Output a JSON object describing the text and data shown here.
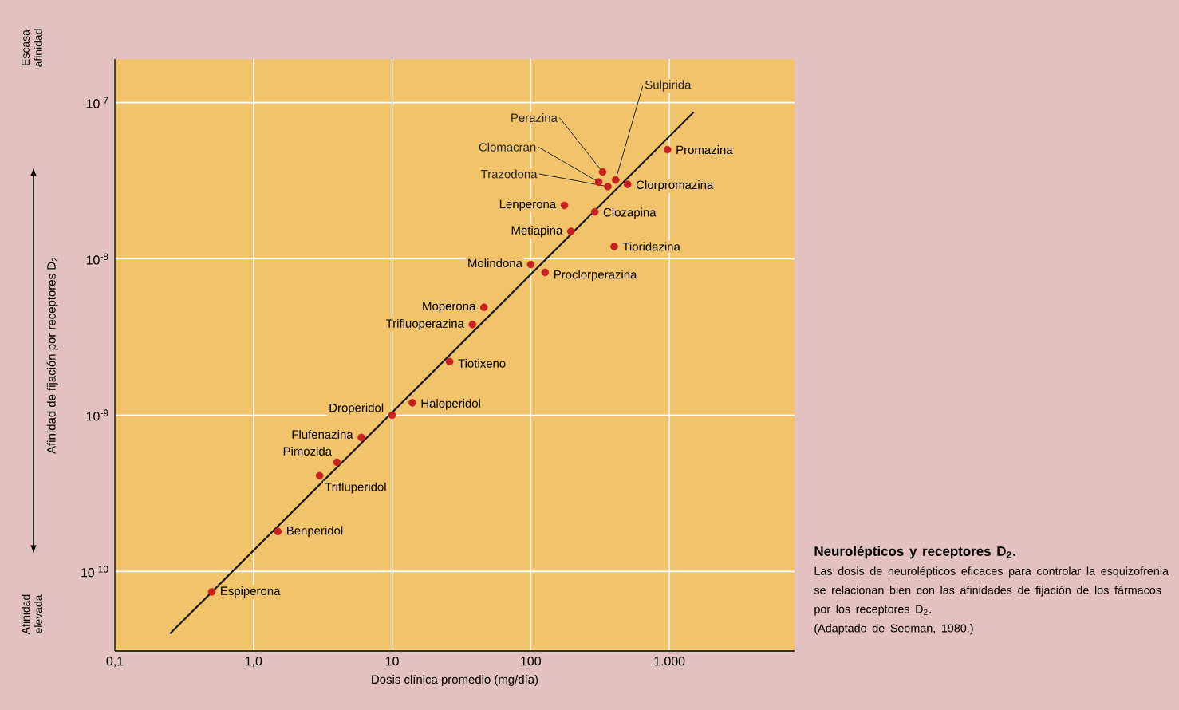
{
  "chart_data": {
    "type": "scatter",
    "title": "Neurolépticos y receptores D$_{2}$.",
    "xlabel": "Dosis clínica promedio (mg/día)",
    "ylabel": "Afinidad de fijación por receptores D$_{2}$",
    "log": "xy",
    "grid": true,
    "marker": "circle",
    "xlim": [
      0.1,
      8000
    ],
    "ylim": [
      3.1e-11,
      1.9e-07
    ],
    "xticks": [
      {
        "value": 0.1,
        "label": "0,1"
      },
      {
        "value": 1,
        "label": "1,0"
      },
      10,
      100,
      {
        "value": 1000,
        "label": "1.000"
      }
    ],
    "yticks": [
      {
        "value": 1e-10,
        "label": "10$^{-10}$"
      },
      {
        "value": 1e-09,
        "label": "10$^{-9}$"
      },
      {
        "value": 1e-08,
        "label": "10$^{-8}$"
      },
      {
        "value": 1e-07,
        "label": "10$^{-7}$"
      }
    ],
    "series": [
      {
        "color": "#c8201e",
        "x": [
          0.5,
          1.5,
          3.0,
          4.0,
          6.0,
          10,
          14,
          26,
          38,
          46,
          100,
          127,
          195,
          175,
          290,
          400,
          500,
          330,
          310,
          360,
          410,
          970
        ],
        "values": [
          7.4e-11,
          1.8e-10,
          4.1e-10,
          5e-10,
          7.2e-10,
          1e-09,
          1.2e-09,
          2.2e-09,
          3.8e-09,
          4.9e-09,
          9.2e-09,
          8.2e-09,
          1.5e-08,
          2.2e-08,
          2e-08,
          1.2e-08,
          3e-08,
          3.6e-08,
          3.1e-08,
          2.9e-08,
          3.2e-08,
          5e-08
        ]
      },
      {
        "type": "line",
        "marker": "none",
        "color": "#1a1a1a",
        "x": [
          0.25,
          1500
        ],
        "values": [
          4e-11,
          8.7e-08
        ]
      }
    ],
    "annotations": [
      {
        "text": "Espiperona",
        "x": 0.5,
        "y": 7.4e-11
      },
      {
        "text": "Benperidol",
        "x": 1.5,
        "y": 1.8e-10
      },
      {
        "text": "Trifluperidol",
        "x": 3.0,
        "y": 4.1e-10
      },
      {
        "text": "Pimozida",
        "x": 4.0,
        "y": 5e-10
      },
      {
        "text": "Flufenazina",
        "x": 6.0,
        "y": 7.2e-10
      },
      {
        "text": "Droperidol",
        "x": 10,
        "y": 1e-09
      },
      {
        "text": "Haloperidol",
        "x": 14,
        "y": 1.2e-09
      },
      {
        "text": "Tiotixeno",
        "x": 26,
        "y": 2.2e-09
      },
      {
        "text": "Trifluoperazina",
        "x": 38,
        "y": 3.8e-09
      },
      {
        "text": "Moperona",
        "x": 46,
        "y": 4.9e-09
      },
      {
        "text": "Molindona",
        "x": 100,
        "y": 9.2e-09
      },
      {
        "text": "Proclorperazina",
        "x": 127,
        "y": 8.2e-09
      },
      {
        "text": "Metiapina",
        "x": 195,
        "y": 1.5e-08
      },
      {
        "text": "Lenperona",
        "x": 175,
        "y": 2.2e-08
      },
      {
        "text": "Clozapina",
        "x": 290,
        "y": 2e-08
      },
      {
        "text": "Tioridazina",
        "x": 400,
        "y": 1.2e-08
      },
      {
        "text": "Clorpromazina",
        "x": 500,
        "y": 3e-08
      },
      {
        "text": "Perazina",
        "x": 330,
        "y": 3.6e-08
      },
      {
        "text": "Clomacran",
        "x": 310,
        "y": 3.1e-08
      },
      {
        "text": "Trazodona",
        "x": 360,
        "y": 2.9e-08
      },
      {
        "text": "Sulpirida",
        "x": 410,
        "y": 3.2e-08
      },
      {
        "text": "Promazina",
        "x": 970,
        "y": 5e-08
      },
      "Escasa afinidad",
      "Afinidad elevada",
      "Las dosis de neurolépticos eficaces para controlar la esquizofrenia se relacionan bien con las afinidades de fijación de los fármacos por los receptores D$_{2}$.",
      "(Adaptado de Seeman, 1980.)"
    ]
  }
}
